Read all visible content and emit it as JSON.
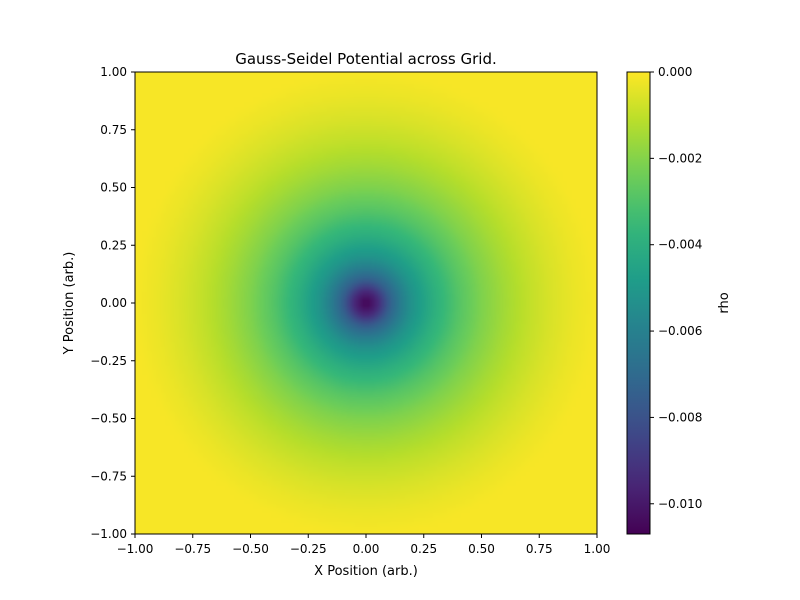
{
  "chart_data": {
    "type": "heatmap",
    "title": "Gauss-Seidel Potential across Grid.",
    "xlabel": "X Position (arb.)",
    "ylabel": "Y Position (arb.)",
    "xlim": [
      -1.0,
      1.0
    ],
    "ylim": [
      -1.0,
      1.0
    ],
    "x_ticks": [
      -1.0,
      -0.75,
      -0.5,
      -0.25,
      0.0,
      0.25,
      0.5,
      0.75,
      1.0
    ],
    "x_tick_labels": [
      "−1.00",
      "−0.75",
      "−0.50",
      "−0.25",
      "0.00",
      "0.25",
      "0.50",
      "0.75",
      "1.00"
    ],
    "y_ticks": [
      -1.0,
      -0.75,
      -0.5,
      -0.25,
      0.0,
      0.25,
      0.5,
      0.75,
      1.0
    ],
    "y_tick_labels": [
      "−1.00",
      "−0.75",
      "−0.50",
      "−0.25",
      "0.00",
      "0.25",
      "0.50",
      "0.75",
      "1.00"
    ],
    "grid": false,
    "colormap": "viridis",
    "field": {
      "description": "radially symmetric potential well centered at (0, 0), zero at grid boundary",
      "center": [
        0.0,
        0.0
      ],
      "min_value": -0.0107,
      "max_value": 0.0,
      "radial_profile": {
        "r": [
          0.0,
          0.05,
          0.1,
          0.15,
          0.2,
          0.3,
          0.4,
          0.5,
          0.6,
          0.7,
          0.8,
          0.9,
          1.0
        ],
        "value": [
          -0.0107,
          -0.0095,
          -0.0075,
          -0.0062,
          -0.0052,
          -0.0039,
          -0.0029,
          -0.0021,
          -0.0015,
          -0.001,
          -0.0006,
          -0.0003,
          -0.0001
        ]
      }
    },
    "colorbar": {
      "label": "rho",
      "vmin": -0.0107,
      "vmax": 0.0,
      "ticks": [
        0.0,
        -0.002,
        -0.004,
        -0.006,
        -0.008,
        -0.01
      ],
      "tick_labels": [
        "0.000",
        "−0.002",
        "−0.004",
        "−0.006",
        "−0.008",
        "−0.010"
      ]
    }
  }
}
